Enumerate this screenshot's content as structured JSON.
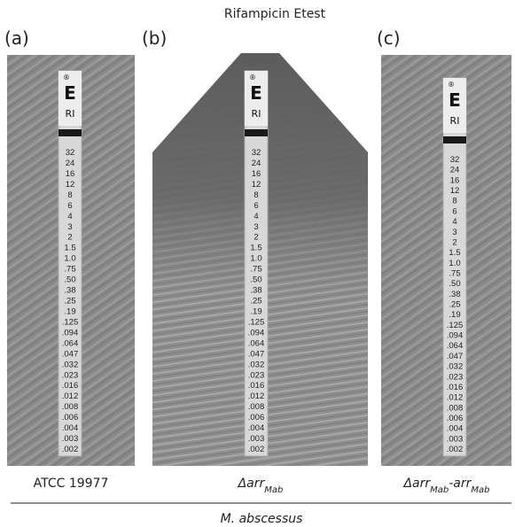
{
  "title": "Rifampicin Etest",
  "strip": {
    "logo": "E",
    "registered": "®",
    "drug": "RI",
    "scale": [
      "32",
      "24",
      "16",
      "12",
      "8",
      "6",
      "4",
      "3",
      "2",
      "1.5",
      "1.0",
      ".75",
      ".50",
      ".38",
      ".25",
      ".19",
      ".125",
      ".094",
      ".064",
      ".047",
      ".032",
      ".023",
      ".016",
      ".012",
      ".008",
      ".006",
      ".004",
      ".003",
      ".002"
    ]
  },
  "panels": [
    {
      "label": "(a)",
      "caption": [
        {
          "text": "ATCC 19977"
        }
      ]
    },
    {
      "label": "(b)",
      "caption": [
        {
          "text": "Δarr"
        },
        {
          "sub": "Mab"
        }
      ]
    },
    {
      "label": "(c)",
      "caption": [
        {
          "text": "Δarr"
        },
        {
          "sub": "Mab"
        },
        {
          "text": "-arr"
        },
        {
          "sub": "Mab"
        }
      ]
    }
  ],
  "species": "M. abscessus"
}
